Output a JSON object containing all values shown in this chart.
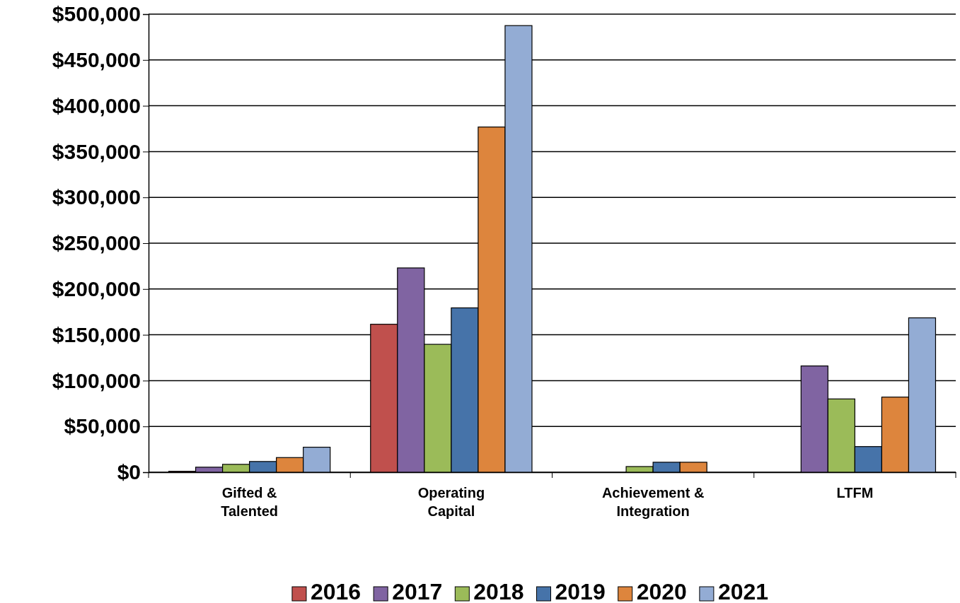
{
  "chart_data": {
    "type": "bar",
    "categories": [
      "Gifted &\nTalented",
      "Operating\nCapital",
      "Achievement &\nIntegration",
      "LTFM"
    ],
    "series": [
      {
        "name": "2016",
        "color": "#c0504d",
        "values": [
          1000,
          161500,
          0,
          0
        ]
      },
      {
        "name": "2017",
        "color": "#8064a2",
        "values": [
          5500,
          223000,
          0,
          116000
        ]
      },
      {
        "name": "2018",
        "color": "#9bbb59",
        "values": [
          8600,
          139600,
          6200,
          80000
        ]
      },
      {
        "name": "2019",
        "color": "#4673a9",
        "values": [
          11700,
          179400,
          10900,
          28000
        ]
      },
      {
        "name": "2020",
        "color": "#dd853d",
        "values": [
          16000,
          376800,
          10900,
          82000
        ]
      },
      {
        "name": "2021",
        "color": "#93acd4",
        "values": [
          27300,
          487500,
          0,
          168500
        ]
      }
    ],
    "ylim": [
      0,
      500000
    ],
    "yticks": [
      {
        "value": 0,
        "label": "$0"
      },
      {
        "value": 50000,
        "label": "$50,000"
      },
      {
        "value": 100000,
        "label": "$100,000"
      },
      {
        "value": 150000,
        "label": "$150,000"
      },
      {
        "value": 200000,
        "label": "$200,000"
      },
      {
        "value": 250000,
        "label": "$250,000"
      },
      {
        "value": 300000,
        "label": "$300,000"
      },
      {
        "value": 350000,
        "label": "$350,000"
      },
      {
        "value": 400000,
        "label": "$400,000"
      },
      {
        "value": 450000,
        "label": "$450,000"
      },
      {
        "value": 500000,
        "label": "$500,000"
      }
    ],
    "grid": "y",
    "legend": "bottom"
  }
}
